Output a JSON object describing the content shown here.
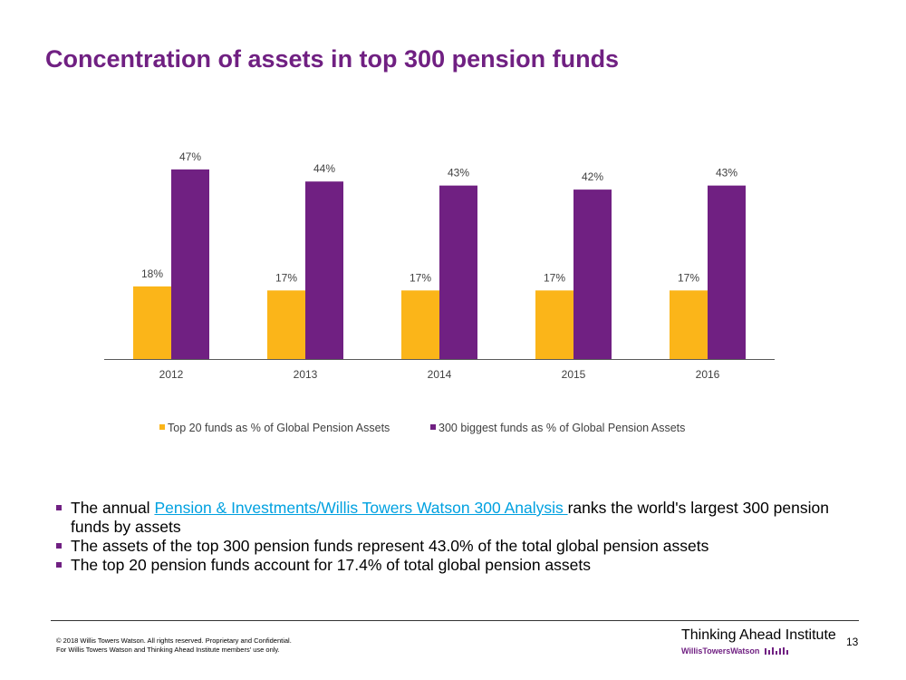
{
  "slide": {
    "title": "Concentration of assets in top 300 pension funds",
    "page_number": "13"
  },
  "chart_data": {
    "type": "bar",
    "title": "",
    "categories": [
      "2012",
      "2013",
      "2014",
      "2015",
      "2016"
    ],
    "series": [
      {
        "name": "Top 20 funds as % of Global Pension Assets",
        "values": [
          18,
          17,
          17,
          17,
          17
        ],
        "labels": [
          "18%",
          "17%",
          "17%",
          "17%",
          "17%"
        ],
        "color": "#fbb519"
      },
      {
        "name": "300 biggest funds as % of Global Pension Assets",
        "values": [
          47,
          44,
          43,
          42,
          43
        ],
        "labels": [
          "47%",
          "44%",
          "43%",
          "42%",
          "43%"
        ],
        "color": "#702082"
      }
    ],
    "xlabel": "",
    "ylabel": "",
    "ylim": [
      0,
      50
    ],
    "grid": false,
    "legend": "bottom"
  },
  "bullets": {
    "b1_prefix": "The annual ",
    "b1_link": "Pension & Investments/Willis Towers Watson 300 Analysis ",
    "b1_suffix": "ranks the world's largest 300 pension funds by assets",
    "b2": "The assets of the top 300 pension funds represent 43.0% of the total global pension assets",
    "b3": "The top 20 pension funds account for 17.4% of total global pension assets"
  },
  "footer": {
    "copyright_line1": "© 2018 Willis Towers Watson. All rights reserved. Proprietary and Confidential.",
    "copyright_line2": "For Willis Towers Watson and Thinking Ahead Institute members' use only.",
    "institute": "Thinking Ahead Institute",
    "company": "WillisTowersWatson"
  },
  "colors": {
    "title": "#702082",
    "link": "#00a1e0"
  }
}
